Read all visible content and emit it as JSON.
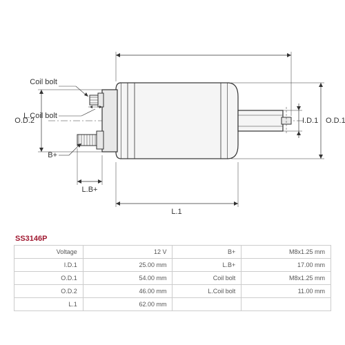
{
  "part_number": "SS3146P",
  "diagram": {
    "labels": {
      "od2": "O.D.2",
      "od1": "O.D.1",
      "id1": "I.D.1",
      "l1": "L.1",
      "lb_plus": "L.B+",
      "coil_bolt": "Coil bolt",
      "l_coil_bolt": "L.Coil bolt",
      "b_plus": "B+"
    },
    "colors": {
      "stroke": "#333333",
      "fill_light": "#f5f5f5",
      "fill_med": "#e8e8e8",
      "bg": "#ffffff",
      "accent": "#a01830",
      "table_border": "#cccccc",
      "table_text": "#555555"
    }
  },
  "specs": {
    "left": [
      {
        "label": "Voltage",
        "value": "12 V"
      },
      {
        "label": "I.D.1",
        "value": "25.00 mm"
      },
      {
        "label": "O.D.1",
        "value": "54.00 mm"
      },
      {
        "label": "O.D.2",
        "value": "46.00 mm"
      },
      {
        "label": "L.1",
        "value": "62.00 mm"
      }
    ],
    "right": [
      {
        "label": "B+",
        "value": "M8x1.25 mm"
      },
      {
        "label": "L.B+",
        "value": "17.00 mm"
      },
      {
        "label": "Coil bolt",
        "value": "M8x1.25 mm"
      },
      {
        "label": "L.Coil bolt",
        "value": "11.00 mm"
      },
      {
        "label": "",
        "value": ""
      }
    ]
  }
}
